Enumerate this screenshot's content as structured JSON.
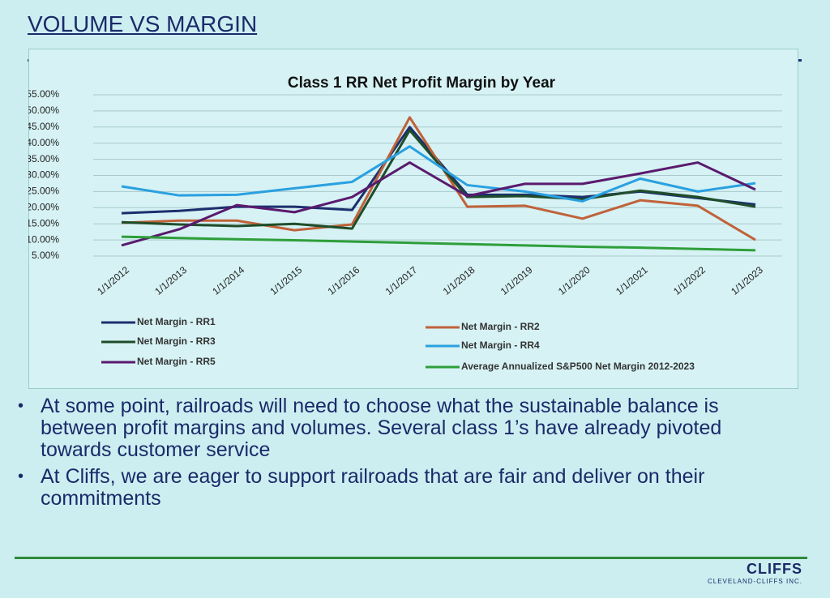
{
  "slide": {
    "title": "VOLUME VS MARGIN"
  },
  "chart_data": {
    "type": "line",
    "title": "Class 1 RR Net Profit Margin by Year",
    "categories": [
      "1/1/2012",
      "1/1/2013",
      "1/1/2014",
      "1/1/2015",
      "1/1/2016",
      "1/1/2017",
      "1/1/2018",
      "1/1/2019",
      "1/1/2020",
      "1/1/2021",
      "1/1/2022",
      "1/1/2023"
    ],
    "series": [
      {
        "name": "Net Margin - RR1",
        "color": "#1b2f6e",
        "values": [
          18.3,
          19,
          20.3,
          20.3,
          19.3,
          45,
          24,
          24,
          23.3,
          25,
          23,
          21
        ]
      },
      {
        "name": "Net Margin - RR2",
        "color": "#c0623a",
        "values": [
          15.3,
          16,
          16,
          13,
          14.8,
          48,
          20.3,
          20.6,
          16.6,
          22.3,
          20.6,
          10
        ]
      },
      {
        "name": "Net Margin - RR3",
        "color": "#1f4d2a",
        "values": [
          15.5,
          14.8,
          14.3,
          15,
          13.5,
          44,
          23.3,
          23.6,
          22.6,
          25.3,
          23.3,
          20.3
        ]
      },
      {
        "name": "Net Margin - RR4",
        "color": "#2aa0e0",
        "values": [
          26.6,
          23.8,
          24,
          26,
          28,
          39,
          27,
          25,
          22,
          29,
          25,
          27.6
        ]
      },
      {
        "name": "Net Margin - RR5",
        "color": "#5a1a6e",
        "values": [
          8.3,
          13.3,
          20.8,
          18.6,
          23.3,
          34,
          23.6,
          27.4,
          27.4,
          30.6,
          34,
          25.6
        ]
      },
      {
        "name": "Average Annualized S&P500 Net Margin 2012-2023",
        "color": "#2e9e3a",
        "values": [
          11,
          10.6,
          10.2,
          9.9,
          9.5,
          9.1,
          8.7,
          8.3,
          7.9,
          7.6,
          7.2,
          6.8
        ]
      }
    ],
    "ylim": [
      5,
      55
    ],
    "yticks": [
      {
        "value": 5,
        "label": "5.00%"
      },
      {
        "value": 10,
        "label": "10.00%"
      },
      {
        "value": 15,
        "label": "15.00%"
      },
      {
        "value": 20,
        "label": "20.00%"
      },
      {
        "value": 25,
        "label": "25.00%"
      },
      {
        "value": 30,
        "label": "30.00%"
      },
      {
        "value": 35,
        "label": "35.00%"
      },
      {
        "value": 40,
        "label": "40.00%"
      },
      {
        "value": 45,
        "label": "45.00%"
      },
      {
        "value": 50,
        "label": "50.00%"
      },
      {
        "value": 55,
        "label": "55.00%"
      }
    ],
    "grid": true,
    "legend": "bottom"
  },
  "bullets": [
    "At some point, railroads will need to choose what the sustainable balance is between profit margins and volumes.  Several class 1’s have already pivoted towards customer service",
    "At Cliffs, we are eager to support railroads that are fair and deliver on their commitments"
  ],
  "logo": {
    "name": "CLIFFS",
    "subtitle": "CLEVELAND-CLIFFS INC."
  }
}
